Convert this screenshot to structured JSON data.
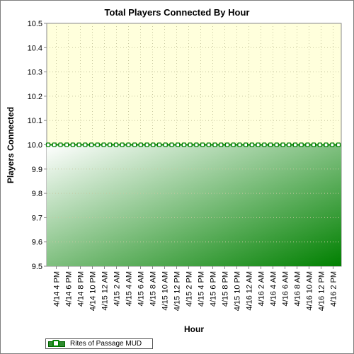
{
  "chart_data": {
    "type": "area",
    "title": "Total Players Connected By Hour",
    "xlabel": "Hour",
    "ylabel": "Players Connected",
    "ylim": [
      9.5,
      10.5
    ],
    "yticks": [
      "9.5",
      "9.6",
      "9.7",
      "9.8",
      "9.9",
      "10.0",
      "10.1",
      "10.2",
      "10.3",
      "10.4",
      "10.5"
    ],
    "categories": [
      "4/14 4 PM",
      "4/14 6 PM",
      "4/14 8 PM",
      "4/14 10 PM",
      "4/15 12 AM",
      "4/15 2 AM",
      "4/15 4 AM",
      "4/15 6 AM",
      "4/15 8 AM",
      "4/15 10 AM",
      "4/15 12 PM",
      "4/15 2 PM",
      "4/15 4 PM",
      "4/15 6 PM",
      "4/15 8 PM",
      "4/15 10 PM",
      "4/16 12 AM",
      "4/16 2 AM",
      "4/16 4 AM",
      "4/16 6 AM",
      "4/16 8 AM",
      "4/16 10 AM",
      "4/16 12 PM",
      "4/16 2 PM"
    ],
    "series": [
      {
        "name": "Rites of Passage MUD",
        "value": 10.0,
        "points": 48
      }
    ],
    "grid": true,
    "legend": "bottom-left",
    "colors": {
      "series_line": "#008000",
      "fill_dark": "#008000",
      "fill_light": "#ffffff",
      "plot_bg": "#ffffdc"
    }
  }
}
